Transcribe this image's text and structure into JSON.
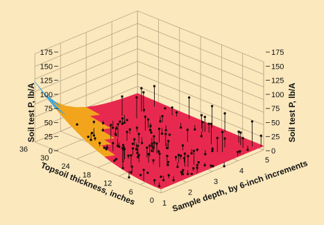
{
  "chart_data": {
    "type": "surface3d",
    "title": "",
    "ylabel": "Soil test P, lb/A",
    "xlabel": "Topsoil thickness, inches",
    "depth_label": "Sample depth, by 6-inch increments",
    "z_ticks": [
      "0",
      "25",
      "50",
      "75",
      "100",
      "125",
      "150",
      "175"
    ],
    "z_range": [
      0,
      175
    ],
    "x_ticks": [
      "36",
      "30",
      "24",
      "18",
      "12",
      "6",
      "0"
    ],
    "x_range": [
      0,
      36
    ],
    "depth_ticks": [
      "1",
      "2",
      "3",
      "4",
      "5"
    ],
    "depth_range": [
      1,
      5
    ],
    "grid": true,
    "series": [
      {
        "values_description_free": true,
        "surface": [
          {
            "topsoil": 36,
            "depth": 1,
            "p": 120
          },
          {
            "topsoil": 30,
            "depth": 1,
            "p": 95
          },
          {
            "topsoil": 24,
            "depth": 1,
            "p": 60
          },
          {
            "topsoil": 18,
            "depth": 1,
            "p": 40
          },
          {
            "topsoil": 12,
            "depth": 1,
            "p": 25
          },
          {
            "topsoil": 6,
            "depth": 1,
            "p": 12
          },
          {
            "topsoil": 0,
            "depth": 1,
            "p": 8
          },
          {
            "topsoil": 36,
            "depth": 3,
            "p": 40
          },
          {
            "topsoil": 0,
            "depth": 3,
            "p": 5
          },
          {
            "topsoil": 36,
            "depth": 5,
            "p": 30
          },
          {
            "topsoil": 0,
            "depth": 5,
            "p": 5
          }
        ]
      }
    ],
    "colors": {
      "background": "#fbe8bd",
      "grid": "#b8a383",
      "surface_high": "#3fa8dd",
      "surface_mid": "#f2a51c",
      "surface_low": "#e8294f",
      "points": "#1a0f0a"
    }
  }
}
